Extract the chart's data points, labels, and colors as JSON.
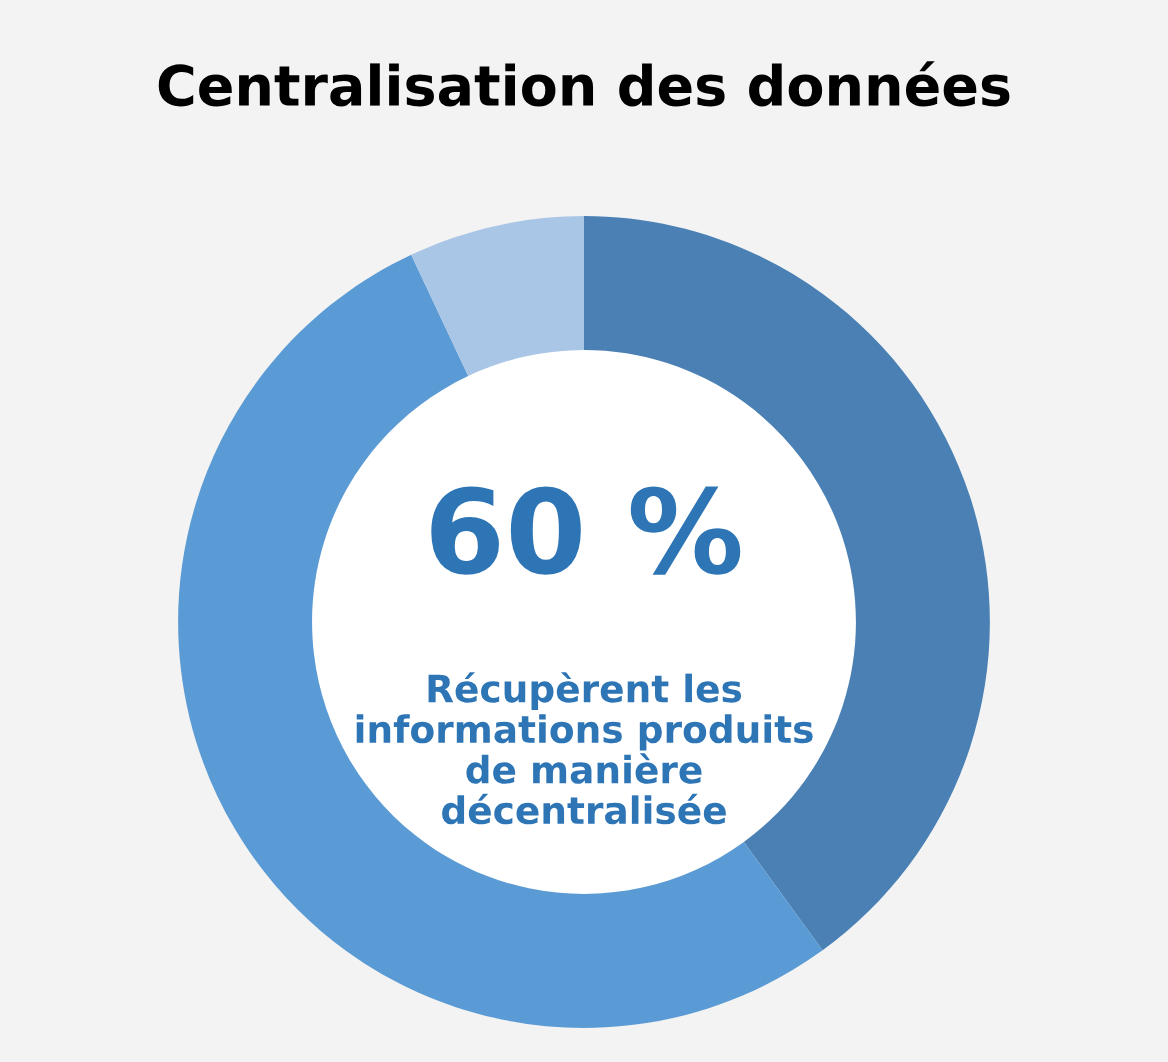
{
  "chart_data": {
    "type": "donut",
    "title": "Centralisation des données",
    "categories": [
      null,
      null,
      null
    ],
    "values": [
      40,
      53,
      7
    ],
    "colors": [
      "#4a80b4",
      "#5b9bd5",
      "#aac6e6"
    ],
    "annotations": [
      "60 %",
      "Récupèrent les\ninformations produits\nde manière\ndécentralisée"
    ]
  }
}
